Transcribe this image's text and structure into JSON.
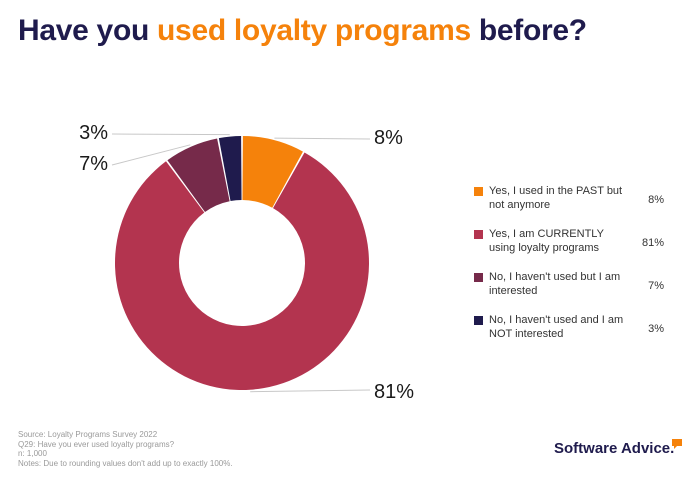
{
  "title": {
    "part1": "Have you ",
    "highlight": "used loyalty programs",
    "part2": " before?"
  },
  "chart_data": {
    "type": "pie",
    "donut": true,
    "title": "Have you used loyalty programs before?",
    "series": [
      {
        "name": "Yes, I used in the PAST but not anymore",
        "value": 8,
        "label": "8%",
        "color": "#f5820b"
      },
      {
        "name": "Yes, I am CURRENTLY using loyalty programs",
        "value": 81,
        "label": "81%",
        "color": "#b3344f"
      },
      {
        "name": "No, I haven't used but I am interested",
        "value": 7,
        "label": "7%",
        "color": "#762a4a"
      },
      {
        "name": "No, I haven't used and I am NOT interested",
        "value": 3,
        "label": "3%",
        "color": "#1f1b4d"
      }
    ],
    "legend_position": "right"
  },
  "footnotes": [
    "Source: Loyalty Programs Survey 2022",
    "Q29: Have you ever used loyalty programs?",
    "n: 1,000",
    "Notes: Due to rounding values don't add up to exactly 100%."
  ],
  "brand": {
    "name": "Software Advice.",
    "icon": "speech-bubble-icon",
    "icon_color": "#f5820b"
  }
}
